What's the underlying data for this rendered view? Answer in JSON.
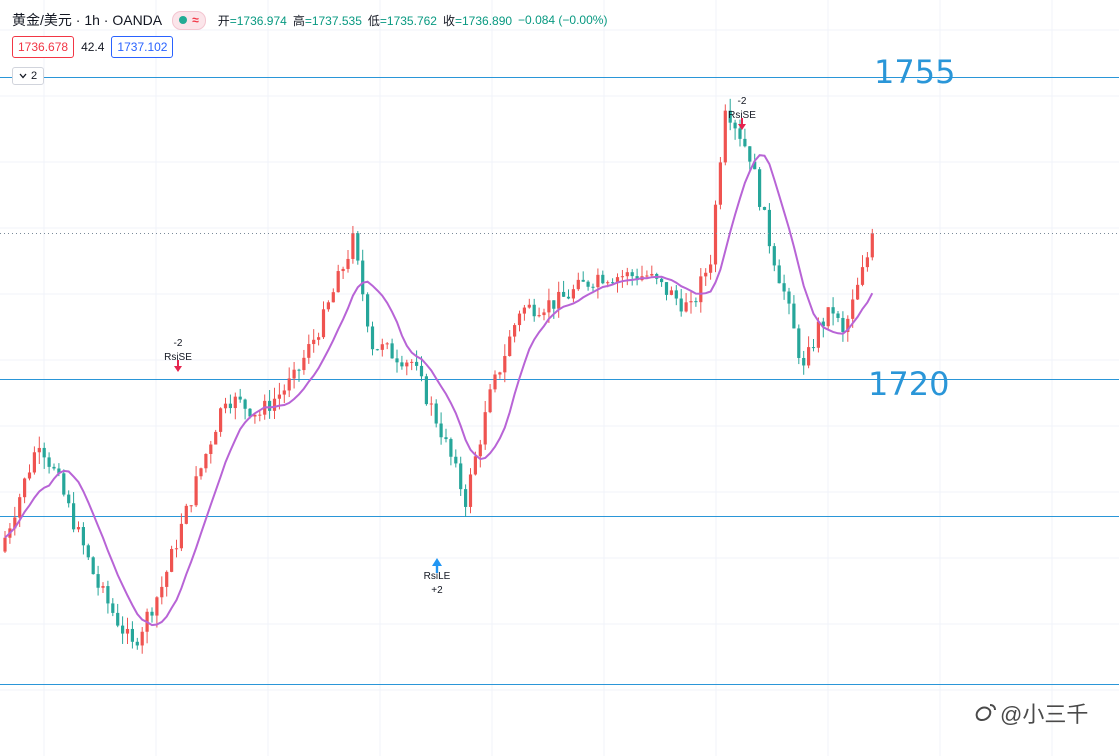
{
  "header": {
    "symbol": "黄金/美元 · 1h · OANDA",
    "ohlc": [
      {
        "label": "开",
        "value": "=1736.974"
      },
      {
        "label": "高",
        "value": "=1737.535"
      },
      {
        "label": "低",
        "value": "=1735.762"
      },
      {
        "label": "收",
        "value": "=1736.890"
      }
    ],
    "change": "−0.084 (−0.00%)",
    "bid": "1736.678",
    "spread": "42.4",
    "ask": "1737.102",
    "indicators_toggle": "2"
  },
  "levels": {
    "upper": "1755",
    "lower": "1720"
  },
  "signals": [
    {
      "name": "signal-rsise-1",
      "lines": [
        "-2",
        "RsiSE"
      ],
      "kind": "short"
    },
    {
      "name": "signal-rsile",
      "lines": [
        "RsiLE",
        "+2"
      ],
      "kind": "long"
    },
    {
      "name": "signal-rsise-2",
      "lines": [
        "-2",
        "RsiSE"
      ],
      "kind": "short"
    }
  ],
  "watermark": "@小三千",
  "colors": {
    "up": "#ef5350",
    "down": "#26a69a",
    "ma": "#b864d6",
    "level_line": "#2a96d8",
    "level_text": "#2a96d8",
    "grid": "#f0f3fa"
  },
  "chart_data": {
    "type": "candlestick",
    "title": "黄金/美元 · 1h · OANDA",
    "xlabel": "",
    "ylabel": "",
    "ylim": [
      1705,
      1760
    ],
    "grid": true,
    "horizontal_lines": [
      1755,
      1720,
      1704.1,
      1684.7
    ],
    "last_price": 1736.89,
    "overlays": [
      "moving-average"
    ],
    "candles_shown": 148,
    "key_points": [
      {
        "label": "start",
        "value": 1700
      },
      {
        "label": "low",
        "value": 1689
      },
      {
        "label": "first peak",
        "value": 1719
      },
      {
        "label": "second peak",
        "value": 1737
      },
      {
        "label": "dip",
        "value": 1705
      },
      {
        "label": "high",
        "value": 1753
      },
      {
        "label": "pullback",
        "value": 1718
      },
      {
        "label": "last",
        "value": 1736.89
      }
    ]
  }
}
